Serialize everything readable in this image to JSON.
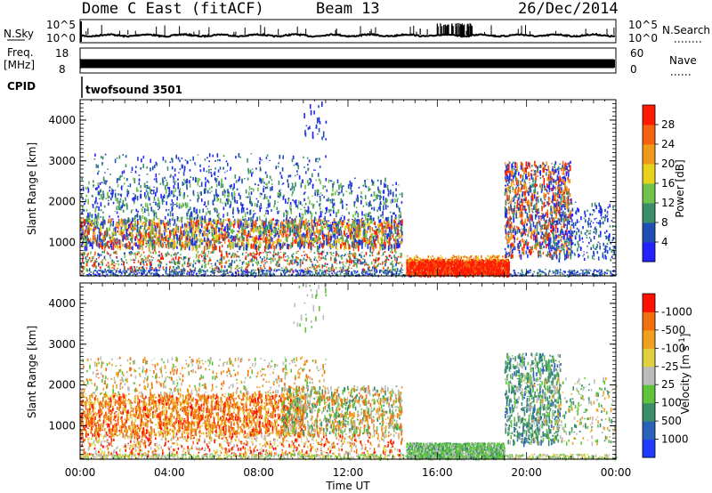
{
  "header": {
    "station": "Dome C East (fitACF)",
    "beam": "Beam 13",
    "date": "26/Dec/2014"
  },
  "noise_panel": {
    "left_label": "N.Sky",
    "left_ticks": [
      "10^5",
      "10^0"
    ],
    "right_label": "N.Search",
    "right_ticks": [
      "10^5",
      "10^0"
    ]
  },
  "freq_panel": {
    "left_label_1": "Freq.",
    "left_label_2": "[MHz]",
    "left_ticks": [
      "18",
      "8"
    ],
    "right_label": "Nave",
    "right_ticks": [
      "60",
      "0"
    ]
  },
  "cpid_panel": {
    "label": "CPID",
    "program": "twofsound 3501"
  },
  "power_panel": {
    "y_label": "Slant Range [km]",
    "colorbar_label": "Power [dB]"
  },
  "velocity_panel": {
    "y_label": "Slant Range [km]",
    "colorbar_label_main": "Velocity  [m s",
    "colorbar_label_sup": "-1",
    "colorbar_label_end": "]"
  },
  "x_axis_label": "Time UT",
  "colors": {
    "power_scale": [
      "#2222ff",
      "#1f4fb5",
      "#3a8f6a",
      "#6fc24a",
      "#e8d21c",
      "#f09a1c",
      "#f2620f",
      "#ff1a00"
    ],
    "velocity_scale": [
      "#1f3cff",
      "#2a62b8",
      "#3a8f6a",
      "#5fc43c",
      "#bbbbbb",
      "#e0d040",
      "#f0a020",
      "#f07010",
      "#ff1000"
    ]
  },
  "chart_data": [
    {
      "type": "line",
      "title": "",
      "xlabel": "",
      "ylabel": "N.Sky",
      "ylim": [
        "10^0",
        "10^5"
      ],
      "x_range": [
        "00:00",
        "24:00"
      ],
      "series": [
        {
          "name": "N.Sky",
          "style": "thick line near lower axis with spikes, dense spiking 16:00-17:30"
        }
      ]
    },
    {
      "type": "line",
      "title": "",
      "xlabel": "",
      "ylabel": "Freq. [MHz]",
      "ylim": [
        8,
        18
      ],
      "x_range": [
        "00:00",
        "24:00"
      ],
      "series": [
        {
          "name": "Freq.",
          "values_note": "near 10 MHz throughout"
        },
        {
          "name": "Nave",
          "values_note": "near 30 throughout"
        }
      ]
    },
    {
      "type": "heatmap",
      "title": "",
      "xlabel": "",
      "ylabel": "Slant Range [km]",
      "ylim": [
        180,
        4500
      ],
      "y_ticks": [
        1000,
        2000,
        3000,
        4000
      ],
      "x_ticks": [
        "00:00",
        "04:00",
        "08:00",
        "12:00",
        "16:00",
        "20:00",
        "00:00"
      ],
      "colorbar": {
        "label": "Power [dB]",
        "ticks": [
          4,
          8,
          12,
          16,
          20,
          24,
          28
        ],
        "range": [
          0,
          30
        ]
      },
      "features": [
        {
          "time": [
            0,
            14.4
          ],
          "range": [
            300,
            1600
          ],
          "level": "8-28 dB"
        },
        {
          "time": [
            14.5,
            19.2
          ],
          "range": [
            200,
            600
          ],
          "level": "28 dB"
        },
        {
          "time": [
            19,
            22
          ],
          "range": [
            600,
            3000
          ],
          "level": "8-28 dB"
        }
      ]
    },
    {
      "type": "heatmap",
      "title": "",
      "xlabel": "Time UT",
      "ylabel": "Slant Range [km]",
      "ylim": [
        180,
        4500
      ],
      "y_ticks": [
        1000,
        2000,
        3000,
        4000
      ],
      "x_ticks": [
        "00:00",
        "04:00",
        "08:00",
        "12:00",
        "16:00",
        "20:00",
        "00:00"
      ],
      "colorbar": {
        "label": "Velocity [m s-1]",
        "ticks": [
          1000,
          500,
          100,
          25,
          -25,
          -100,
          -500,
          -1000
        ]
      },
      "features": [
        {
          "time": [
            0,
            11
          ],
          "range": [
            300,
            2600
          ],
          "level": "-100 to -500 m/s"
        },
        {
          "time": [
            10,
            14.4
          ],
          "range": [
            800,
            2000
          ],
          "level": "25 to 100 m/s"
        },
        {
          "time": [
            14.5,
            19
          ],
          "range": [
            200,
            600
          ],
          "level": "25 to 100 m/s"
        },
        {
          "time": [
            19,
            21.5
          ],
          "range": [
            600,
            2800
          ],
          "level": "100 to 500 m/s"
        }
      ]
    }
  ]
}
